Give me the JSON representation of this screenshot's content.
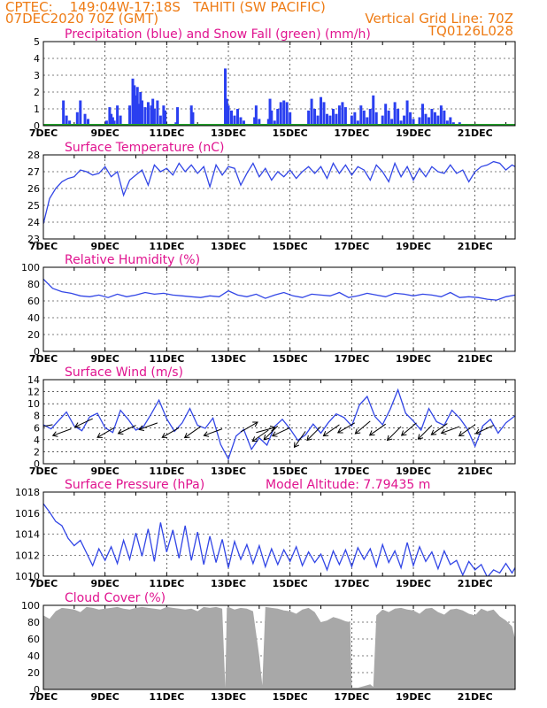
{
  "header": {
    "line1_left": "CPTEC:    149:04W-17:18S   TAHITI (SW PACIFIC)",
    "line2_left": "07DEC2020 70Z (GMT)",
    "line2_right": "Vertical Grid Line: 70Z",
    "line3_right": "TQ0126L028"
  },
  "x_axis": {
    "tick_labels": [
      "7DEC",
      "9DEC",
      "11DEC",
      "13DEC",
      "15DEC",
      "17DEC",
      "19DEC",
      "21DEC"
    ],
    "tick_days": [
      0,
      2,
      4,
      6,
      8,
      10,
      12,
      14
    ],
    "total_days": 15.3
  },
  "colors": {
    "line": "#3246e6",
    "bar": "#2a3ff0",
    "snow": "#22a32a",
    "cloud": "#a8a8a8",
    "title": "#e0138f",
    "header": "#ee7b14"
  },
  "chart_data": [
    {
      "id": "precip",
      "type": "bar",
      "title": "Precipitation (blue) and Snow Fall (green) (mm/h)",
      "ylim": [
        0,
        5
      ],
      "yticks": [
        0,
        1,
        2,
        3,
        4,
        5
      ],
      "grid": true,
      "precip_x_days": [
        0.65,
        0.75,
        0.85,
        1.1,
        1.2,
        1.35,
        1.45,
        2.05,
        2.15,
        2.2,
        2.25,
        2.3,
        2.4,
        2.5,
        2.8,
        2.9,
        2.95,
        3.0,
        3.05,
        3.1,
        3.15,
        3.2,
        3.3,
        3.4,
        3.5,
        3.55,
        3.6,
        3.7,
        3.8,
        3.9,
        3.95,
        4.3,
        4.35,
        4.8,
        4.85,
        5.9,
        5.95,
        6.0,
        6.1,
        6.2,
        6.3,
        6.4,
        6.5,
        6.85,
        6.9,
        7.0,
        7.3,
        7.35,
        7.4,
        7.5,
        7.6,
        7.7,
        7.8,
        7.9,
        8.0,
        8.6,
        8.7,
        8.8,
        8.9,
        9.0,
        9.1,
        9.2,
        9.3,
        9.4,
        9.5,
        9.6,
        9.7,
        9.8,
        10.0,
        10.1,
        10.2,
        10.3,
        10.4,
        10.5,
        10.6,
        10.7,
        10.8,
        11.0,
        11.1,
        11.2,
        11.3,
        11.4,
        11.5,
        11.6,
        11.7,
        11.8,
        11.9,
        12.0,
        12.2,
        12.3,
        12.4,
        12.5,
        12.6,
        12.7,
        12.8,
        12.9,
        13.0,
        13.1,
        13.2,
        13.3,
        13.5,
        13.6
      ],
      "precip_values": [
        1.5,
        0.6,
        0.3,
        0.8,
        1.5,
        0.7,
        0.4,
        0.3,
        1.1,
        0.7,
        0.5,
        0.3,
        1.2,
        0.6,
        1.2,
        2.8,
        2.4,
        1.8,
        2.3,
        1.3,
        2.0,
        1.5,
        1.1,
        1.4,
        1.2,
        1.6,
        1.0,
        1.5,
        0.6,
        1.2,
        0.9,
        0.2,
        1.1,
        1.2,
        0.8,
        3.4,
        1.6,
        1.2,
        0.9,
        0.6,
        1.0,
        0.5,
        0.3,
        0.5,
        1.2,
        0.4,
        0.4,
        1.6,
        0.9,
        0.3,
        1.0,
        1.4,
        1.5,
        1.4,
        0.8,
        0.9,
        1.6,
        1.0,
        0.6,
        1.7,
        1.4,
        0.7,
        0.6,
        1.0,
        0.7,
        1.2,
        1.4,
        1.1,
        0.6,
        0.8,
        0.3,
        1.2,
        0.9,
        0.5,
        1.0,
        1.8,
        0.8,
        0.6,
        1.3,
        0.9,
        0.4,
        1.4,
        1.0,
        0.3,
        0.6,
        1.5,
        0.8,
        0.4,
        0.5,
        1.3,
        0.7,
        0.5,
        1.0,
        0.8,
        0.6,
        1.2,
        0.9,
        0.3,
        0.5,
        0.2,
        0.2,
        0.1
      ],
      "snow_values": [
        0,
        0
      ]
    },
    {
      "id": "temperature",
      "type": "line",
      "title": "Surface Temperature (nC)",
      "ylim": [
        23,
        28
      ],
      "yticks": [
        23,
        24,
        25,
        26,
        27,
        28
      ],
      "grid": true,
      "x_days": [
        0,
        0.2,
        0.4,
        0.6,
        0.8,
        1.0,
        1.2,
        1.4,
        1.6,
        1.8,
        2.0,
        2.2,
        2.4,
        2.6,
        2.8,
        3.0,
        3.2,
        3.4,
        3.6,
        3.8,
        4.0,
        4.2,
        4.4,
        4.6,
        4.8,
        5.0,
        5.2,
        5.4,
        5.6,
        5.8,
        6.0,
        6.2,
        6.4,
        6.6,
        6.8,
        7.0,
        7.2,
        7.4,
        7.6,
        7.8,
        8.0,
        8.2,
        8.4,
        8.6,
        8.8,
        9.0,
        9.2,
        9.4,
        9.6,
        9.8,
        10.0,
        10.2,
        10.4,
        10.6,
        10.8,
        11.0,
        11.2,
        11.4,
        11.6,
        11.8,
        12.0,
        12.2,
        12.4,
        12.6,
        12.8,
        13.0,
        13.2,
        13.4,
        13.6,
        13.8,
        14.0,
        14.2,
        14.4,
        14.6,
        14.8,
        15.0,
        15.2,
        15.3
      ],
      "values": [
        23.9,
        25.4,
        26.0,
        26.4,
        26.6,
        26.7,
        27.1,
        27.0,
        26.8,
        26.9,
        27.3,
        26.7,
        27.0,
        25.6,
        26.5,
        26.8,
        27.1,
        26.2,
        27.4,
        27.0,
        27.2,
        26.8,
        27.5,
        27.0,
        27.4,
        26.9,
        27.3,
        26.1,
        27.4,
        26.8,
        27.3,
        27.2,
        26.2,
        26.9,
        27.5,
        26.7,
        27.2,
        26.5,
        27.0,
        26.7,
        27.1,
        26.6,
        27.0,
        27.3,
        26.9,
        27.3,
        26.6,
        27.5,
        26.9,
        27.4,
        26.8,
        27.3,
        27.1,
        26.5,
        27.4,
        27.0,
        26.4,
        27.5,
        26.7,
        27.3,
        26.5,
        27.2,
        26.7,
        27.3,
        27.0,
        26.9,
        27.4,
        26.9,
        27.1,
        26.4,
        27.0,
        27.3,
        27.4,
        27.6,
        27.5,
        27.1,
        27.4,
        27.3
      ]
    },
    {
      "id": "humidity",
      "type": "line",
      "title": "Relative Humidity (%)",
      "ylim": [
        0,
        100
      ],
      "yticks": [
        0,
        20,
        40,
        60,
        80,
        100
      ],
      "grid": true,
      "x_days": [
        0,
        0.3,
        0.6,
        0.9,
        1.2,
        1.5,
        1.8,
        2.1,
        2.4,
        2.7,
        3.0,
        3.3,
        3.6,
        3.9,
        4.2,
        4.5,
        4.8,
        5.1,
        5.4,
        5.7,
        6.0,
        6.3,
        6.6,
        6.9,
        7.2,
        7.5,
        7.8,
        8.1,
        8.4,
        8.7,
        9.0,
        9.3,
        9.6,
        9.9,
        10.2,
        10.5,
        10.8,
        11.1,
        11.4,
        11.7,
        12.0,
        12.3,
        12.6,
        12.9,
        13.2,
        13.5,
        13.8,
        14.1,
        14.4,
        14.7,
        15.0,
        15.3
      ],
      "values": [
        86,
        75,
        71,
        69,
        66,
        65,
        67,
        64,
        68,
        65,
        67,
        70,
        68,
        69,
        67,
        66,
        65,
        64,
        66,
        65,
        72,
        67,
        65,
        68,
        63,
        67,
        70,
        66,
        64,
        68,
        67,
        66,
        70,
        64,
        66,
        69,
        67,
        65,
        69,
        68,
        66,
        68,
        67,
        65,
        70,
        64,
        65,
        64,
        62,
        61,
        65,
        67
      ]
    },
    {
      "id": "wind",
      "type": "line",
      "title": "Surface Wind (m/s)",
      "ylim": [
        0,
        14
      ],
      "yticks": [
        0,
        2,
        4,
        6,
        8,
        10,
        12,
        14
      ],
      "grid": true,
      "x_days": [
        0,
        0.25,
        0.5,
        0.75,
        1.0,
        1.25,
        1.5,
        1.75,
        2.0,
        2.25,
        2.5,
        2.75,
        3.0,
        3.25,
        3.5,
        3.75,
        4.0,
        4.25,
        4.5,
        4.75,
        5.0,
        5.25,
        5.5,
        5.75,
        6.0,
        6.25,
        6.5,
        6.75,
        7.0,
        7.25,
        7.5,
        7.75,
        8.0,
        8.25,
        8.5,
        8.75,
        9.0,
        9.25,
        9.5,
        9.75,
        10.0,
        10.25,
        10.5,
        10.75,
        11.0,
        11.25,
        11.5,
        11.75,
        12.0,
        12.25,
        12.5,
        12.75,
        13.0,
        13.25,
        13.5,
        13.75,
        14.0,
        14.25,
        14.5,
        14.75,
        15.0,
        15.3
      ],
      "values": [
        6.5,
        5.8,
        7.2,
        8.6,
        6.3,
        5.5,
        7.8,
        8.4,
        6.0,
        5.2,
        8.9,
        7.4,
        5.6,
        6.2,
        8.3,
        10.6,
        7.5,
        5.4,
        6.8,
        9.2,
        6.4,
        5.9,
        7.6,
        3.2,
        0.8,
        4.6,
        5.7,
        2.4,
        4.3,
        3.1,
        6.2,
        7.4,
        5.8,
        3.9,
        4.8,
        6.6,
        5.1,
        6.9,
        8.3,
        7.7,
        6.3,
        9.8,
        11.2,
        7.9,
        6.5,
        9.1,
        12.3,
        8.4,
        7.1,
        5.6,
        9.2,
        7.0,
        6.4,
        8.9,
        7.6,
        5.8,
        2.9,
        6.3,
        7.4,
        5.1,
        6.8,
        8.0
      ],
      "arrow_days": [
        0.3,
        0.9,
        1.6,
        2.3,
        3.0,
        3.7,
        4.4,
        5.1,
        5.8,
        6.4,
        6.9,
        7.3,
        7.6,
        8.0,
        8.5,
        9.0,
        9.6,
        10.1,
        10.6,
        11.1,
        11.6,
        12.1,
        12.6,
        13.1,
        13.5,
        14.0,
        14.6
      ],
      "arrow_dir_deg": [
        190,
        200,
        205,
        210,
        205,
        200,
        210,
        215,
        200,
        30,
        15,
        215,
        225,
        205,
        235,
        225,
        215,
        210,
        220,
        215,
        225,
        220,
        225,
        215,
        200,
        215,
        205
      ],
      "arrow_speed": [
        6.5,
        5.8,
        7.5,
        6.0,
        6.4,
        6.8,
        6.0,
        6.2,
        5.8,
        5.3,
        5.2,
        5.6,
        6.3,
        6.0,
        5.4,
        6.2,
        6.5,
        6.8,
        7.1,
        6.6,
        6.2,
        6.8,
        6.4,
        6.7,
        6.2,
        6.5,
        6.4
      ]
    },
    {
      "id": "pressure",
      "type": "line",
      "title": "Surface Pressure (hPa)",
      "annotation": "Model Altitude: 7.79435 m",
      "ylim": [
        1010,
        1018
      ],
      "yticks": [
        1010,
        1012,
        1014,
        1016,
        1018
      ],
      "grid": true,
      "x_days": [
        0,
        0.2,
        0.4,
        0.6,
        0.8,
        1.0,
        1.2,
        1.4,
        1.6,
        1.8,
        2.0,
        2.2,
        2.4,
        2.6,
        2.8,
        3.0,
        3.2,
        3.4,
        3.6,
        3.8,
        4.0,
        4.2,
        4.4,
        4.6,
        4.8,
        5.0,
        5.2,
        5.4,
        5.6,
        5.8,
        6.0,
        6.2,
        6.4,
        6.6,
        6.8,
        7.0,
        7.2,
        7.4,
        7.6,
        7.8,
        8.0,
        8.2,
        8.4,
        8.6,
        8.8,
        9.0,
        9.2,
        9.4,
        9.6,
        9.8,
        10.0,
        10.2,
        10.4,
        10.6,
        10.8,
        11.0,
        11.2,
        11.4,
        11.6,
        11.8,
        12.0,
        12.2,
        12.4,
        12.6,
        12.8,
        13.0,
        13.2,
        13.4,
        13.6,
        13.8,
        14.0,
        14.2,
        14.4,
        14.6,
        14.8,
        15.0,
        15.2,
        15.3
      ],
      "values": [
        1016.9,
        1016.1,
        1015.2,
        1014.8,
        1013.6,
        1012.9,
        1013.4,
        1012.2,
        1011.0,
        1012.6,
        1011.5,
        1012.8,
        1011.2,
        1013.4,
        1011.6,
        1014.1,
        1011.9,
        1014.5,
        1011.4,
        1015.1,
        1012.3,
        1014.4,
        1011.7,
        1014.8,
        1011.5,
        1014.2,
        1011.1,
        1013.8,
        1011.3,
        1013.5,
        1010.8,
        1013.3,
        1011.6,
        1013.0,
        1011.2,
        1012.9,
        1010.9,
        1012.6,
        1011.1,
        1012.5,
        1011.4,
        1012.8,
        1011.0,
        1012.3,
        1011.3,
        1012.1,
        1010.6,
        1012.4,
        1011.1,
        1012.5,
        1010.9,
        1012.7,
        1011.6,
        1012.6,
        1010.9,
        1013.0,
        1011.3,
        1012.4,
        1010.8,
        1013.2,
        1011.0,
        1012.8,
        1011.4,
        1012.3,
        1010.7,
        1012.4,
        1011.1,
        1011.5,
        1010.1,
        1011.4,
        1010.6,
        1011.1,
        1009.9,
        1010.6,
        1010.3,
        1011.2,
        1010.3,
        1010.8
      ]
    },
    {
      "id": "cloud",
      "type": "area",
      "title": "Cloud Cover (%)",
      "ylim": [
        0,
        100
      ],
      "yticks": [
        0,
        20,
        40,
        60,
        80,
        100
      ],
      "grid": true,
      "x_days": [
        0,
        0.2,
        0.4,
        0.6,
        0.8,
        1.0,
        1.2,
        1.4,
        1.6,
        1.8,
        2.0,
        2.2,
        2.4,
        2.6,
        2.8,
        3.0,
        3.2,
        3.4,
        3.6,
        3.8,
        4.0,
        4.2,
        4.4,
        4.6,
        4.8,
        5.0,
        5.2,
        5.4,
        5.6,
        5.8,
        5.9,
        5.95,
        6.0,
        6.2,
        6.4,
        6.6,
        6.8,
        7.0,
        7.1,
        7.2,
        7.4,
        7.6,
        7.8,
        8.0,
        8.2,
        8.4,
        8.6,
        8.8,
        9.0,
        9.2,
        9.4,
        9.6,
        9.8,
        9.95,
        10.0,
        10.2,
        10.4,
        10.6,
        10.7,
        10.8,
        11.0,
        11.2,
        11.4,
        11.6,
        11.8,
        12.0,
        12.2,
        12.4,
        12.6,
        12.8,
        13.0,
        13.2,
        13.4,
        13.6,
        13.8,
        14.0,
        14.2,
        14.4,
        14.6,
        14.8,
        15.0,
        15.2,
        15.3
      ],
      "values": [
        88,
        84,
        93,
        97,
        96,
        95,
        92,
        98,
        97,
        95,
        96,
        97,
        98,
        96,
        95,
        97,
        98,
        97,
        96,
        95,
        98,
        97,
        96,
        95,
        96,
        93,
        98,
        97,
        98,
        96,
        2,
        97,
        98,
        95,
        97,
        96,
        93,
        40,
        5,
        98,
        97,
        96,
        94,
        93,
        90,
        95,
        97,
        92,
        80,
        82,
        86,
        84,
        81,
        80,
        2,
        2,
        4,
        6,
        3,
        88,
        95,
        92,
        96,
        97,
        95,
        94,
        90,
        96,
        97,
        92,
        89,
        95,
        96,
        94,
        90,
        88,
        96,
        93,
        95,
        87,
        82,
        75,
        60
      ]
    }
  ]
}
